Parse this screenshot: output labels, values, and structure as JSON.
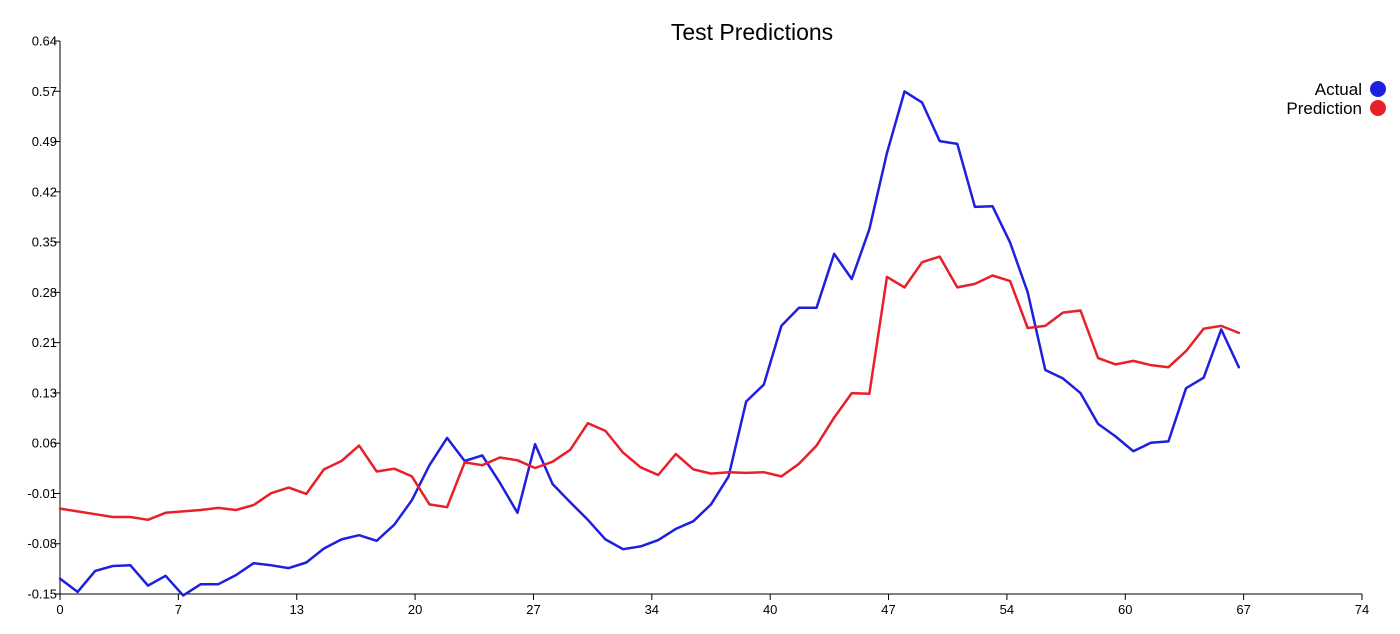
{
  "chart_data": {
    "type": "line",
    "title": "Test Predictions",
    "xlabel": "",
    "ylabel": "",
    "xlim": [
      0,
      74
    ],
    "ylim": [
      -0.15,
      0.64
    ],
    "x_ticks": [
      "0",
      "7",
      "13",
      "20",
      "27",
      "34",
      "40",
      "47",
      "54",
      "60",
      "67",
      "74"
    ],
    "y_ticks": [
      "0.64",
      "0.57",
      "0.49",
      "0.42",
      "0.35",
      "0.28",
      "0.21",
      "0.13",
      "0.06",
      "-0.01",
      "-0.08",
      "-0.15"
    ],
    "legend_position": "top-right",
    "grid": false,
    "series": [
      {
        "name": "Actual",
        "color": "#1f1fe0",
        "values": [
          -0.128,
          -0.147,
          -0.117,
          -0.11,
          -0.109,
          -0.138,
          -0.124,
          -0.152,
          -0.136,
          -0.136,
          -0.123,
          -0.106,
          -0.109,
          -0.113,
          -0.105,
          -0.085,
          -0.072,
          -0.066,
          -0.074,
          -0.051,
          -0.016,
          0.034,
          0.073,
          0.04,
          0.048,
          0.009,
          -0.034,
          0.064,
          0.007,
          -0.019,
          -0.044,
          -0.072,
          -0.086,
          -0.082,
          -0.073,
          -0.057,
          -0.046,
          -0.022,
          0.018,
          0.125,
          0.149,
          0.233,
          0.259,
          0.259,
          0.336,
          0.3,
          0.371,
          0.48,
          0.568,
          0.552,
          0.497,
          0.493,
          0.403,
          0.404,
          0.352,
          0.281,
          0.17,
          0.158,
          0.137,
          0.093,
          0.075,
          0.054,
          0.066,
          0.068,
          0.144,
          0.159,
          0.228,
          0.174
        ]
      },
      {
        "name": "Prediction",
        "color": "#e8202a",
        "values": [
          -0.028,
          -0.032,
          -0.036,
          -0.04,
          -0.04,
          -0.044,
          -0.034,
          -0.032,
          -0.03,
          -0.027,
          -0.03,
          -0.023,
          -0.006,
          0.002,
          -0.007,
          0.028,
          0.04,
          0.062,
          0.025,
          0.029,
          0.018,
          -0.022,
          -0.026,
          0.038,
          0.034,
          0.045,
          0.041,
          0.03,
          0.039,
          0.056,
          0.094,
          0.083,
          0.052,
          0.031,
          0.02,
          0.05,
          0.028,
          0.022,
          0.024,
          0.023,
          0.024,
          0.018,
          0.036,
          0.062,
          0.102,
          0.137,
          0.136,
          0.303,
          0.288,
          0.324,
          0.332,
          0.288,
          0.293,
          0.305,
          0.297,
          0.23,
          0.233,
          0.252,
          0.255,
          0.187,
          0.178,
          0.183,
          0.177,
          0.174,
          0.197,
          0.229,
          0.233,
          0.223
        ]
      }
    ]
  }
}
